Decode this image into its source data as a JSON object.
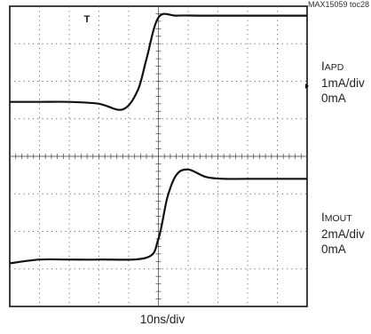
{
  "chart_data": {
    "type": "line",
    "tag": "MAX15059 toc28",
    "x_scale": "10ns/div",
    "x_divisions": 10,
    "y_divisions": 8,
    "grid": true,
    "trigger_marker": "T",
    "series": [
      {
        "name_main": "I",
        "name_sub": "APD",
        "scale": "1mA/div",
        "zero": "0mA",
        "color": "#111111",
        "x": [
          0,
          1.0,
          2.0,
          3.0,
          3.8,
          4.3,
          4.6,
          5.0,
          5.6,
          6.5,
          8,
          10
        ],
        "y": [
          5.45,
          5.45,
          5.45,
          5.4,
          5.25,
          5.75,
          6.6,
          7.7,
          7.75,
          7.75,
          7.75,
          7.75
        ]
      },
      {
        "name_main": "I",
        "name_sub": "MOUT",
        "scale": "2mA/div",
        "zero": "0mA",
        "color": "#111111",
        "x": [
          0,
          1.0,
          2.0,
          3.0,
          4.6,
          5.0,
          5.3,
          5.6,
          6.0,
          6.6,
          7.2,
          8,
          10
        ],
        "y": [
          1.15,
          1.25,
          1.25,
          1.25,
          1.3,
          1.8,
          2.9,
          3.5,
          3.65,
          3.45,
          3.4,
          3.4,
          3.4
        ]
      }
    ]
  }
}
